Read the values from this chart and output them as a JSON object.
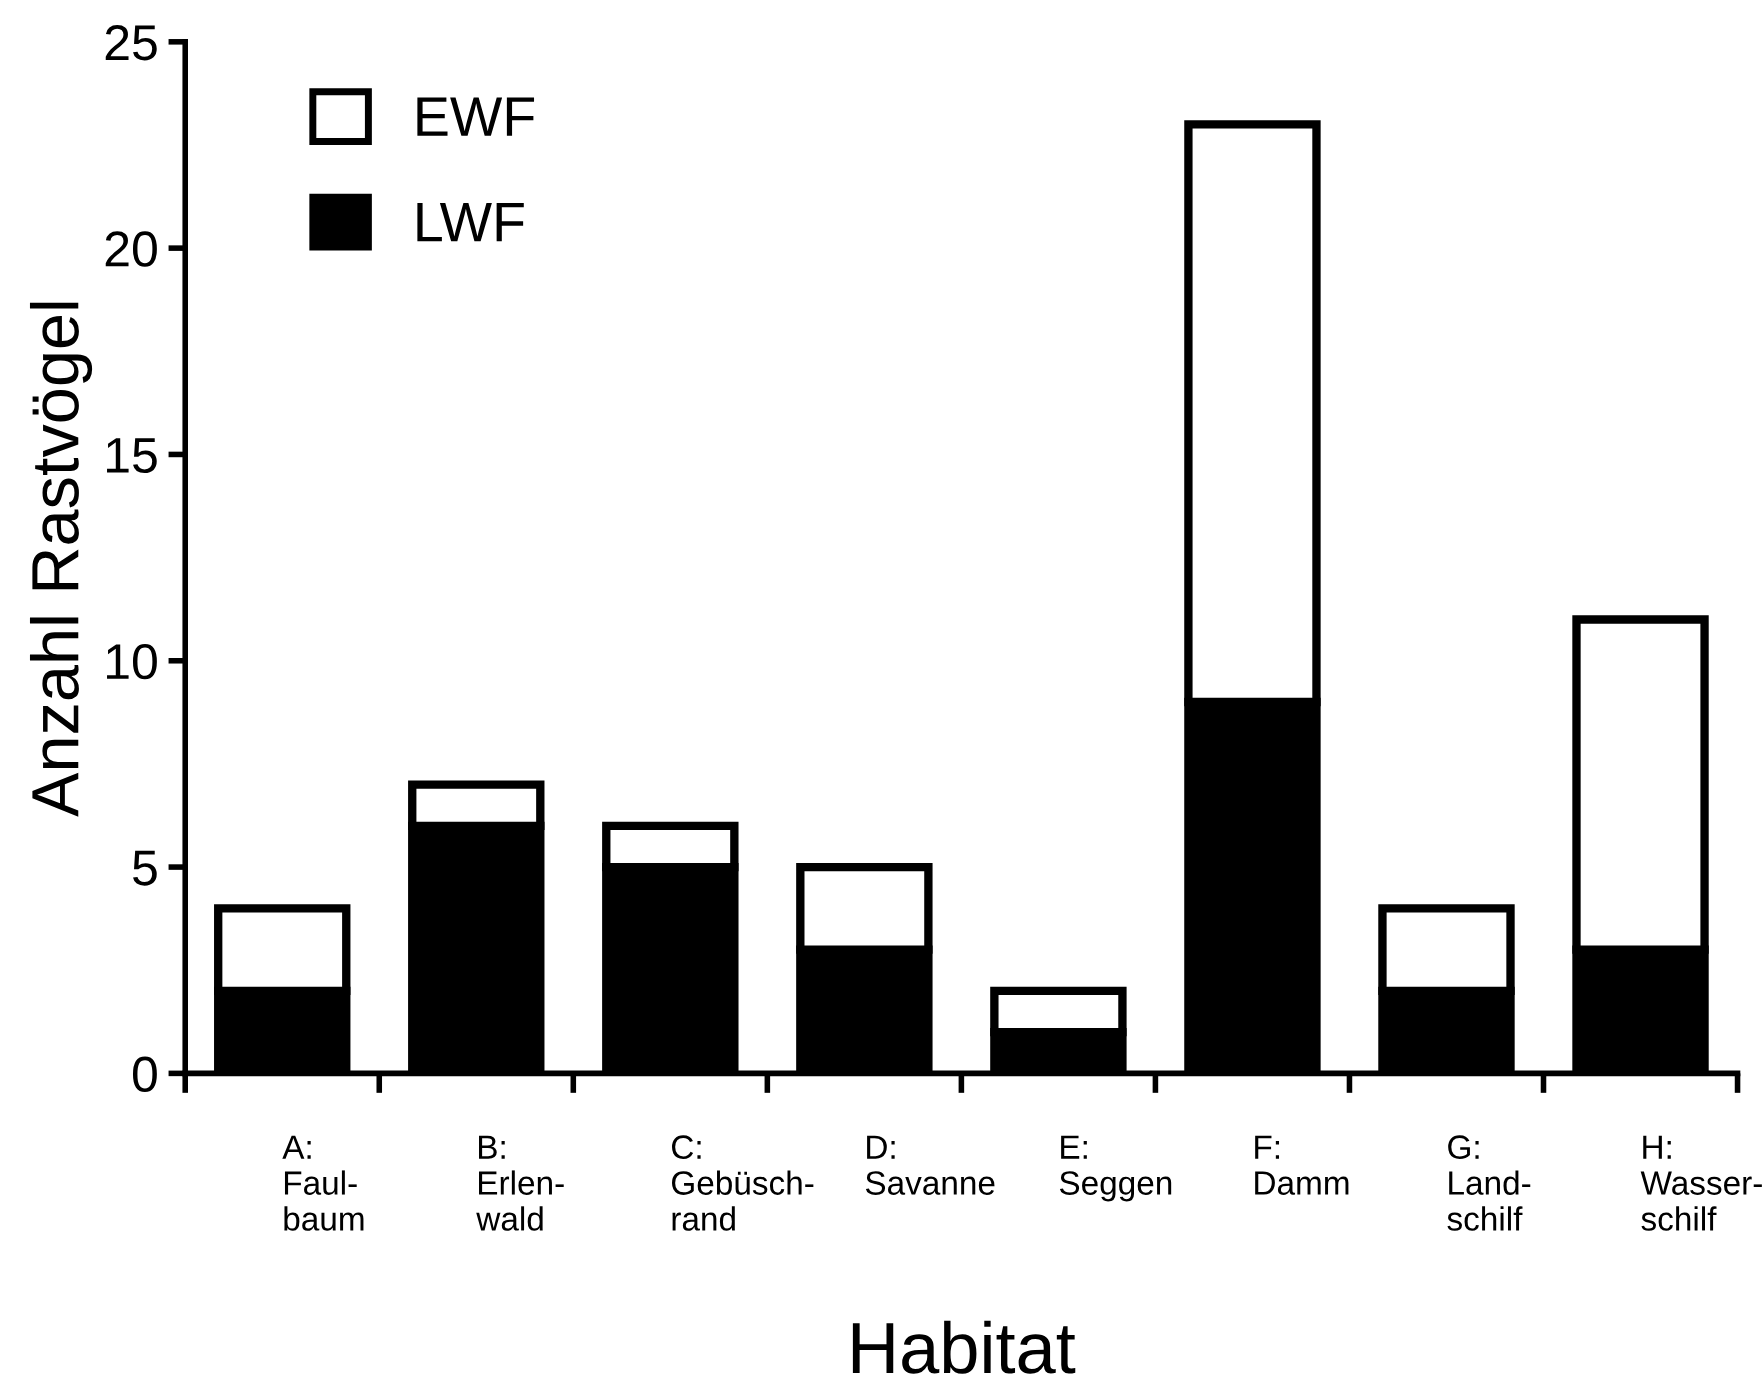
{
  "chart_data": {
    "type": "bar",
    "stacked": true,
    "xlabel": "Habitat",
    "ylabel": "Anzahl Rastvögel",
    "categories": [
      "A:\nFaul-\nbaum",
      "B:\nErlen-\nwald",
      "C:\nGebüsch-\nrand",
      "D:\nSavanne",
      "E:\nSeggen",
      "F:\nDamm",
      "G:\nLand-\nschilf",
      "H:\nWasser-\nschilf"
    ],
    "series": [
      {
        "name": "LWF",
        "color": "#000000",
        "values": [
          2,
          6,
          5,
          3,
          1,
          9,
          2,
          3
        ]
      },
      {
        "name": "EWF",
        "color": "#ffffff",
        "values": [
          2,
          1,
          1,
          2,
          1,
          14,
          2,
          8
        ]
      }
    ],
    "ylim": [
      0,
      25
    ],
    "yticks": [
      0,
      5,
      10,
      15,
      20,
      25
    ],
    "grid": false,
    "legend": "top left"
  }
}
